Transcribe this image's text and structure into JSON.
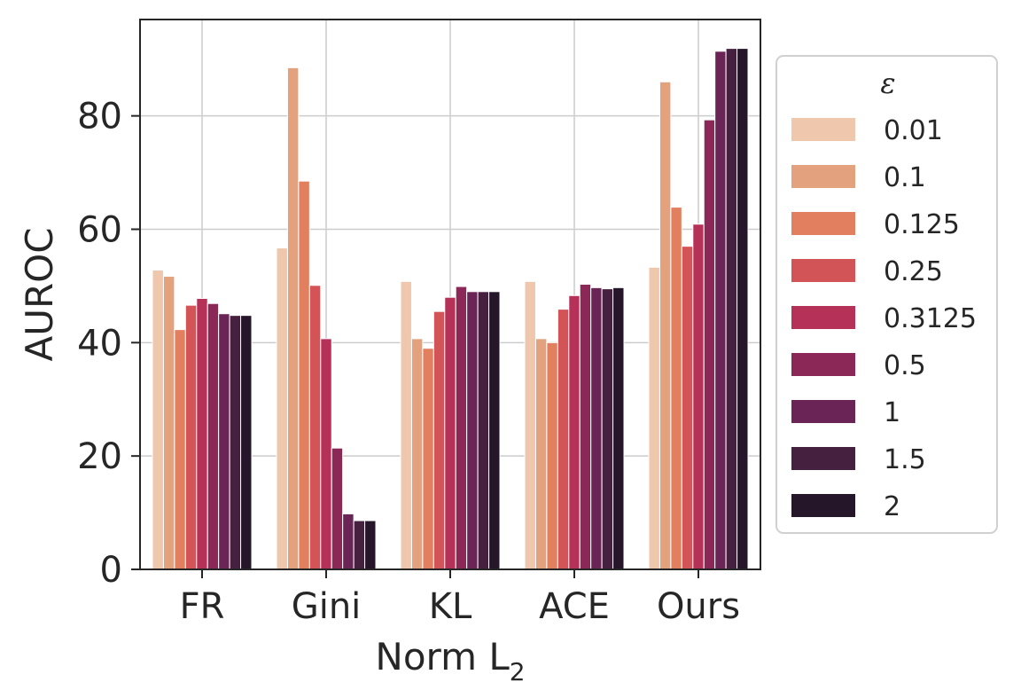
{
  "chart_data": {
    "type": "bar",
    "title": "",
    "xlabel": "Norm L",
    "xlabel_subscript": "2",
    "ylabel": "AUROC",
    "ylim": [
      0,
      97
    ],
    "yticks": [
      0,
      20,
      40,
      60,
      80
    ],
    "ytick_labels": [
      "0",
      "20",
      "40",
      "60",
      "80"
    ],
    "grid": true,
    "legend_position": "right-outside",
    "categories": [
      "FR",
      "Gini",
      "KL",
      "ACE",
      "Ours"
    ],
    "legend_title": "ε",
    "series": [
      {
        "name": "0.01",
        "color": "#efc7ad",
        "values": [
          52.8,
          56.7,
          50.8,
          50.8,
          53.3
        ]
      },
      {
        "name": "0.1",
        "color": "#e4a17e",
        "values": [
          51.7,
          88.5,
          40.7,
          40.7,
          86.0
        ]
      },
      {
        "name": "0.125",
        "color": "#e17f5f",
        "values": [
          42.3,
          68.5,
          39.0,
          40.0,
          63.9
        ]
      },
      {
        "name": "0.25",
        "color": "#d25457",
        "values": [
          46.6,
          50.1,
          45.5,
          45.9,
          57.0
        ]
      },
      {
        "name": "0.3125",
        "color": "#b53158",
        "values": [
          47.8,
          40.7,
          48.0,
          48.3,
          60.9
        ]
      },
      {
        "name": "0.5",
        "color": "#8c2858",
        "values": [
          46.9,
          21.4,
          49.9,
          50.3,
          79.3
        ]
      },
      {
        "name": "1",
        "color": "#6b2456",
        "values": [
          45.1,
          9.8,
          49.0,
          49.7,
          91.4
        ]
      },
      {
        "name": "1.5",
        "color": "#46203f",
        "values": [
          44.8,
          8.6,
          49.0,
          49.5,
          91.9
        ]
      },
      {
        "name": "2",
        "color": "#251629",
        "values": [
          44.8,
          8.6,
          49.0,
          49.7,
          91.9
        ]
      }
    ]
  }
}
